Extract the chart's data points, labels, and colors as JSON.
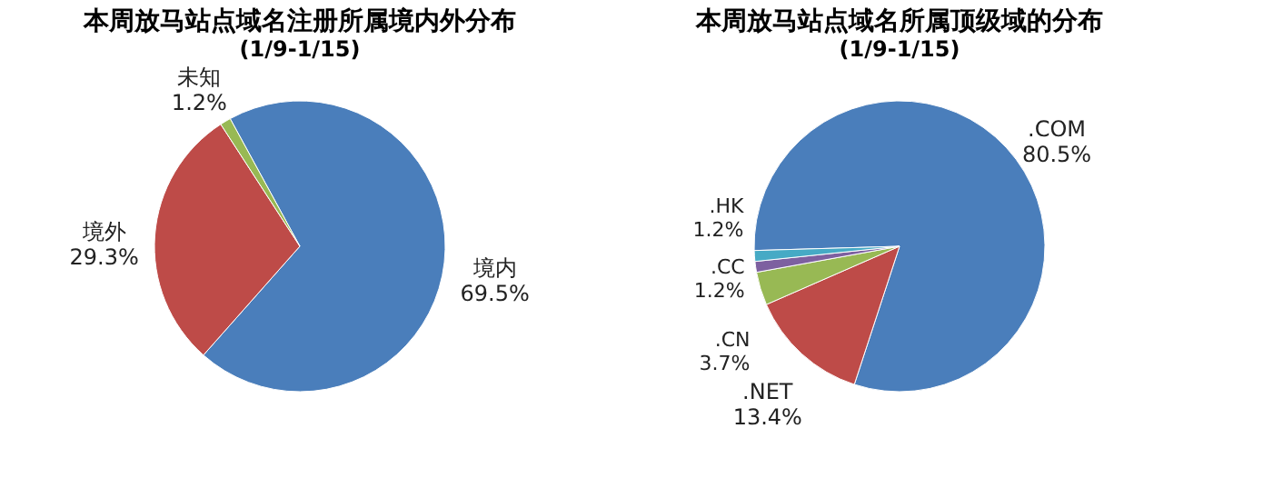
{
  "chart_data": [
    {
      "type": "pie",
      "title": "本周放马站点域名注册所属境内外分布",
      "subtitle": "(1/9-1/15)",
      "categories": [
        "境内",
        "境外",
        "未知"
      ],
      "values": [
        69.5,
        29.3,
        1.2
      ],
      "value_labels": [
        "69.5%",
        "29.3%",
        "1.2%"
      ],
      "colors": [
        "#4a7ebb",
        "#be4b48",
        "#98b954"
      ],
      "legend": false
    },
    {
      "type": "pie",
      "title": "本周放马站点域名所属顶级域的分布",
      "subtitle": "(1/9-1/15)",
      "categories": [
        ".COM",
        ".NET",
        ".CN",
        ".CC",
        ".HK"
      ],
      "values": [
        80.5,
        13.4,
        3.7,
        1.2,
        1.2
      ],
      "value_labels": [
        "80.5%",
        "13.4%",
        "3.7%",
        "1.2%",
        "1.2%"
      ],
      "colors": [
        "#4a7ebb",
        "#be4b48",
        "#98b954",
        "#7d60a0",
        "#46aac5"
      ],
      "legend": false
    }
  ]
}
